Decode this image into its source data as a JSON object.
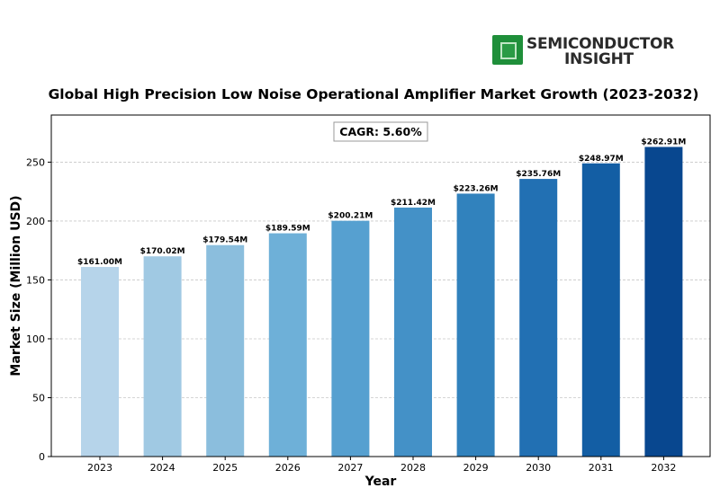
{
  "logo": {
    "line1": "SEMICONDUCTOR",
    "line2": "INSIGHT",
    "icon": "chip-icon",
    "color": "#1f8f3a"
  },
  "chart_data": {
    "type": "bar",
    "title": "Global High Precision Low Noise Operational Amplifier Market Growth (2023-2032)",
    "xlabel": "Year",
    "ylabel": "Market Size (Million USD)",
    "annotation": "CAGR: 5.60%",
    "categories": [
      "2023",
      "2024",
      "2025",
      "2026",
      "2027",
      "2028",
      "2029",
      "2030",
      "2031",
      "2032"
    ],
    "values": [
      161.0,
      170.02,
      179.54,
      189.59,
      200.21,
      211.42,
      223.26,
      235.76,
      248.97,
      262.91
    ],
    "value_labels": [
      "$161.00M",
      "$170.02M",
      "$179.54M",
      "$189.59M",
      "$200.21M",
      "$211.42M",
      "$223.26M",
      "$235.76M",
      "$248.97M",
      "$262.91M"
    ],
    "ylim": [
      0,
      290
    ],
    "yticks": [
      0,
      50,
      100,
      150,
      200,
      250
    ],
    "grid": true,
    "colors": [
      "#b6d4ea",
      "#a0c9e3",
      "#8bbedd",
      "#6eb0d8",
      "#56a0d0",
      "#4491c7",
      "#3182bd",
      "#2270b3",
      "#135ea4",
      "#08478f"
    ]
  }
}
